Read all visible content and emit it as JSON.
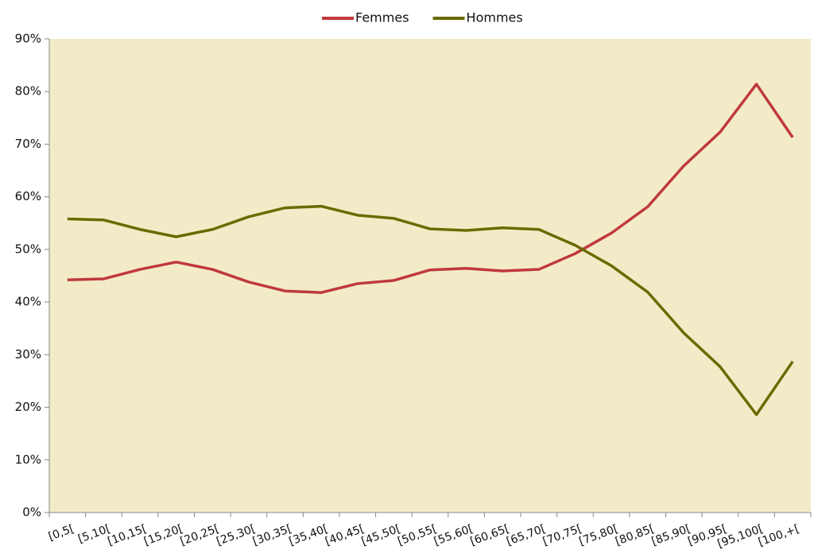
{
  "chart_data": {
    "type": "line",
    "categories": [
      "[0,5[",
      "[5,10[",
      "[10,15[",
      "[15,20[",
      "[20,25[",
      "[25,30[",
      "[30,35[",
      "[35,40[",
      "[40,45[",
      "[45,50[",
      "[50,55[",
      "[55,60[",
      "[60,65[",
      "[65,70[",
      "[70,75[",
      "[75,80[",
      "[80,85[",
      "[85,90[",
      "[90,95[",
      "[95,100[",
      "[100,+["
    ],
    "series": [
      {
        "name": "Femmes",
        "color": "#c0393b",
        "values": [
          44.2,
          44.4,
          46.2,
          47.6,
          46.2,
          43.8,
          42.1,
          41.8,
          43.5,
          44.1,
          46.1,
          46.4,
          45.9,
          46.2,
          49.2,
          53.1,
          58.1,
          65.9,
          72.3,
          81.4,
          71.3
        ]
      },
      {
        "name": "Hommes",
        "color": "#6b6a00",
        "values": [
          55.8,
          55.6,
          53.8,
          52.4,
          53.8,
          56.2,
          57.9,
          58.2,
          56.5,
          55.9,
          53.9,
          53.6,
          54.1,
          53.8,
          50.8,
          46.9,
          41.9,
          34.1,
          27.7,
          18.6,
          28.7
        ]
      }
    ],
    "ylim": [
      0,
      90
    ],
    "yticks": [
      {
        "value": 0,
        "label": "0%"
      },
      {
        "value": 10,
        "label": "10%"
      },
      {
        "value": 20,
        "label": "20%"
      },
      {
        "value": 30,
        "label": "30%"
      },
      {
        "value": 40,
        "label": "40%"
      },
      {
        "value": 50,
        "label": "50%"
      },
      {
        "value": 60,
        "label": "60%"
      },
      {
        "value": 70,
        "label": "70%"
      },
      {
        "value": 80,
        "label": "80%"
      },
      {
        "value": 90,
        "label": "90%"
      }
    ],
    "legend": "top",
    "background": "#f3ebc8"
  }
}
